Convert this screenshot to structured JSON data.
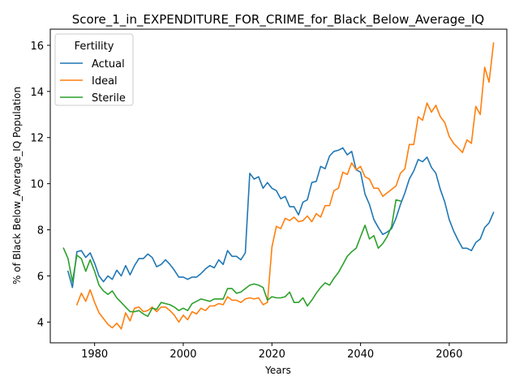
{
  "chart_data": {
    "type": "line",
    "title": "Score_1_in_EXPENDITURE_FOR_CRIME_for_Black_Below_Average_IQ",
    "xlabel": "Years",
    "ylabel": "% of Black Below_Average_IQ Population",
    "xlim": [
      1970,
      2073
    ],
    "ylim": [
      3.1,
      16.7
    ],
    "xticks": [
      1980,
      2000,
      2020,
      2040,
      2060
    ],
    "yticks": [
      4,
      6,
      8,
      10,
      12,
      14,
      16
    ],
    "grid": false,
    "legend": {
      "title": "Fertility",
      "placement": "top-left"
    },
    "series": [
      {
        "name": "Actual",
        "color": "#1f77b4",
        "x": [
          1974,
          1975,
          1976,
          1977,
          1978,
          1979,
          1980,
          1981,
          1982,
          1983,
          1984,
          1985,
          1986,
          1987,
          1988,
          1989,
          1990,
          1991,
          1992,
          1993,
          1994,
          1995,
          1996,
          1997,
          1998,
          1999,
          2000,
          2001,
          2002,
          2003,
          2004,
          2005,
          2006,
          2007,
          2008,
          2009,
          2010,
          2011,
          2012,
          2013,
          2014,
          2015,
          2016,
          2017,
          2018,
          2019,
          2020,
          2021,
          2022,
          2023,
          2024,
          2025,
          2026,
          2027,
          2028,
          2029,
          2030,
          2031,
          2032,
          2033,
          2034,
          2035,
          2036,
          2037,
          2038,
          2039,
          2040,
          2041,
          2042,
          2043,
          2044,
          2045,
          2046,
          2047,
          2048,
          2049,
          2050,
          2051,
          2052,
          2053,
          2054,
          2055,
          2056,
          2057,
          2058,
          2059,
          2060,
          2061,
          2062,
          2063,
          2064,
          2065,
          2066,
          2067,
          2068,
          2069,
          2070
        ],
        "values": [
          6.2,
          5.5,
          7.05,
          7.1,
          6.8,
          7.0,
          6.55,
          6.0,
          5.75,
          6.0,
          5.85,
          6.25,
          6.0,
          6.45,
          6.05,
          6.45,
          6.75,
          6.75,
          6.95,
          6.8,
          6.4,
          6.5,
          6.7,
          6.5,
          6.25,
          5.95,
          5.95,
          5.85,
          5.95,
          5.95,
          6.1,
          6.3,
          6.45,
          6.35,
          6.7,
          6.5,
          7.1,
          6.85,
          6.85,
          6.7,
          7.0,
          10.45,
          10.2,
          10.3,
          9.8,
          10.05,
          9.8,
          9.7,
          9.35,
          9.45,
          9.0,
          9.0,
          8.65,
          9.2,
          9.3,
          10.05,
          10.1,
          10.75,
          10.65,
          11.2,
          11.4,
          11.45,
          11.55,
          11.25,
          11.4,
          10.6,
          10.5,
          9.55,
          9.1,
          8.45,
          8.1,
          7.8,
          7.9,
          8.05,
          8.5,
          9.1,
          9.6,
          10.2,
          10.55,
          11.05,
          10.95,
          11.15,
          10.7,
          10.45,
          9.75,
          9.2,
          8.45,
          7.95,
          7.55,
          7.2,
          7.2,
          7.1,
          7.45,
          7.6,
          8.1,
          8.3,
          8.75
        ]
      },
      {
        "name": "Ideal",
        "color": "#ff7f0e",
        "x": [
          1976,
          1977,
          1978,
          1979,
          1980,
          1981,
          1982,
          1983,
          1984,
          1985,
          1986,
          1987,
          1988,
          1989,
          1990,
          1991,
          1992,
          1993,
          1994,
          1995,
          1996,
          1997,
          1998,
          1999,
          2000,
          2001,
          2002,
          2003,
          2004,
          2005,
          2006,
          2007,
          2008,
          2009,
          2010,
          2011,
          2012,
          2013,
          2014,
          2015,
          2016,
          2017,
          2018,
          2019,
          2020,
          2021,
          2022,
          2023,
          2024,
          2025,
          2026,
          2027,
          2028,
          2029,
          2030,
          2031,
          2032,
          2033,
          2034,
          2035,
          2036,
          2037,
          2038,
          2039,
          2040,
          2041,
          2042,
          2043,
          2044,
          2045,
          2046,
          2047,
          2048,
          2049,
          2050,
          2051,
          2052,
          2053,
          2054,
          2055,
          2056,
          2057,
          2058,
          2059,
          2060,
          2061,
          2062,
          2063,
          2064,
          2065,
          2066,
          2067,
          2068,
          2069,
          2070
        ],
        "values": [
          4.75,
          5.25,
          4.9,
          5.4,
          4.85,
          4.4,
          4.15,
          3.9,
          3.75,
          3.95,
          3.7,
          4.4,
          4.05,
          4.6,
          4.65,
          4.45,
          4.5,
          4.65,
          4.45,
          4.65,
          4.65,
          4.5,
          4.3,
          4.0,
          4.3,
          4.1,
          4.45,
          4.35,
          4.6,
          4.5,
          4.7,
          4.7,
          4.8,
          4.75,
          5.1,
          4.95,
          4.95,
          4.85,
          5.0,
          5.05,
          5.0,
          5.05,
          4.75,
          4.85,
          7.25,
          8.15,
          8.05,
          8.5,
          8.4,
          8.55,
          8.35,
          8.4,
          8.6,
          8.35,
          8.7,
          8.55,
          9.05,
          9.05,
          9.7,
          9.8,
          10.5,
          10.4,
          10.9,
          10.6,
          10.75,
          10.3,
          10.2,
          9.8,
          9.8,
          9.45,
          9.6,
          9.75,
          9.9,
          10.45,
          10.65,
          11.7,
          11.7,
          12.9,
          12.75,
          13.5,
          13.1,
          13.4,
          12.9,
          12.65,
          12.05,
          11.75,
          11.55,
          11.35,
          11.9,
          11.75,
          13.35,
          13.0,
          15.05,
          14.4,
          16.1
        ]
      },
      {
        "name": "Sterile",
        "color": "#2ca02c",
        "x": [
          1973,
          1974,
          1975,
          1976,
          1977,
          1978,
          1979,
          1980,
          1981,
          1982,
          1983,
          1984,
          1985,
          1986,
          1987,
          1988,
          1989,
          1990,
          1991,
          1992,
          1993,
          1994,
          1995,
          1996,
          1997,
          1998,
          1999,
          2000,
          2001,
          2002,
          2003,
          2004,
          2005,
          2006,
          2007,
          2008,
          2009,
          2010,
          2011,
          2012,
          2013,
          2014,
          2015,
          2016,
          2017,
          2018,
          2019,
          2020,
          2021,
          2022,
          2023,
          2024,
          2025,
          2026,
          2027,
          2028,
          2029,
          2030,
          2031,
          2032,
          2033,
          2034,
          2035,
          2036,
          2037,
          2038,
          2039,
          2040,
          2041,
          2042,
          2043,
          2044,
          2045,
          2046,
          2047,
          2048,
          2049
        ],
        "values": [
          7.2,
          6.75,
          5.75,
          6.9,
          6.75,
          6.2,
          6.7,
          6.2,
          5.6,
          5.35,
          5.2,
          5.35,
          5.05,
          4.85,
          4.65,
          4.45,
          4.45,
          4.5,
          4.35,
          4.25,
          4.6,
          4.55,
          4.85,
          4.8,
          4.75,
          4.65,
          4.5,
          4.6,
          4.5,
          4.8,
          4.9,
          5.0,
          4.95,
          4.9,
          5.0,
          5.0,
          5.0,
          5.45,
          5.45,
          5.25,
          5.3,
          5.45,
          5.6,
          5.65,
          5.6,
          5.5,
          4.95,
          5.1,
          5.05,
          5.05,
          5.1,
          5.3,
          4.85,
          4.85,
          5.05,
          4.7,
          4.95,
          5.25,
          5.5,
          5.7,
          5.6,
          5.9,
          6.15,
          6.5,
          6.85,
          7.05,
          7.2,
          7.7,
          8.2,
          7.6,
          7.75,
          7.2,
          7.4,
          7.7,
          8.15,
          9.3,
          9.25
        ]
      }
    ]
  }
}
